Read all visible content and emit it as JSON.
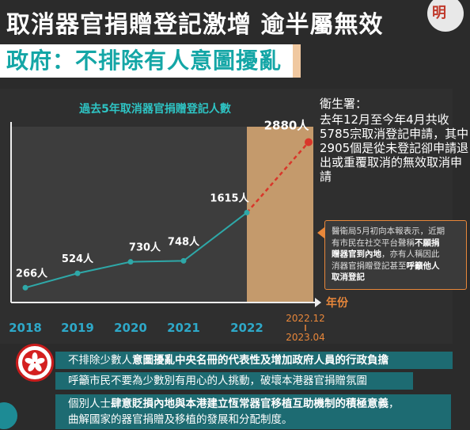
{
  "headline": "取消器官捐贈登記激增  逾半屬無效",
  "brand_mark": "明",
  "subhead": "政府：不排除有人意圖擾亂",
  "chart_data": {
    "type": "line",
    "title": "過去5年取消器官捐贈登記人數",
    "categories": [
      "2018",
      "2019",
      "2020",
      "2021",
      "2022",
      "2022.12-2023.04"
    ],
    "series": [
      {
        "values": [
          266,
          524,
          730,
          748,
          1615,
          2880
        ],
        "value_labels": [
          "266人",
          "524人",
          "730人",
          "748人",
          "1615人",
          "2880人"
        ]
      }
    ],
    "x_axis_label": "年份",
    "highlight_period_label_line1": "2022.12",
    "highlight_period_label_line2": "2023.04",
    "grid": false,
    "ylim": [
      0,
      3200
    ],
    "colors": {
      "line": "#2ea8a8",
      "projection": "#d9362a",
      "highlight": "#c49a6c",
      "title": "#2ec4c4",
      "years": "#2ea8c8",
      "highlight_years": "#e8873a"
    }
  },
  "side_note": {
    "label": "衛生署：",
    "body": "去年12月至今年4月共收5785宗取消登記申請，其中2905個是從未登記卻申請退出或重覆取消的無效取消申請"
  },
  "note_box": {
    "line1": "醫衛局5月初向本報表示，近期",
    "line2_pre": "有市民在社交平台聲稱",
    "line2_bold": "不願捐",
    "line3_bold": "贈器官到內地",
    "line3_post": "，亦有人稱因此",
    "line4_pre": "消器官捐贈登記甚至",
    "line4_bold": "呼籲他人",
    "line5_bold": "取消登記"
  },
  "bottom": {
    "bar1_pre": "不排除少數人",
    "bar1_bold": "意圖擾亂中央名冊的代表性及增加政府人員的行政負擔",
    "bar2": "呼籲市民不要為少數別有用心的人挑動，破壞本港器官捐贈氛圍",
    "bar3_pre": "個別人士",
    "bar3_bold": "肆意貶損內地與本港建立恆常器官移植互助機制的積極意義",
    "bar3_post": "，",
    "bar3_line2": "曲解國家的器官捐贈及移植的發展和分配制度。"
  }
}
